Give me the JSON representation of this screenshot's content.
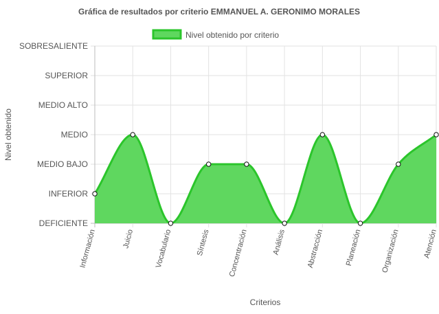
{
  "chart_data": {
    "type": "area",
    "title": "Gráfica de resultados por criterio EMMANUEL A. GERONIMO MORALES",
    "xlabel": "Criterios",
    "ylabel": "Nivel obtenido",
    "categories": [
      "Información",
      "Juicio",
      "Vocabulario",
      "Síntesis",
      "Concentración",
      "Análisis",
      "Abstracción",
      "Planeación",
      "Organización",
      "Atención"
    ],
    "y_levels": [
      "DEFICIENTE",
      "INFERIOR",
      "MEDIO BAJO",
      "MEDIO",
      "MEDIO ALTO",
      "SUPERIOR",
      "SOBRESALIENTE"
    ],
    "ylim": [
      0,
      6
    ],
    "grid": true,
    "legend_position": "top",
    "series": [
      {
        "name": "Nivel obtenido por criterio",
        "values": [
          1,
          3,
          0,
          2,
          2,
          0,
          3,
          0,
          2,
          3
        ],
        "line_color": "#2bc52b",
        "fill_color": "#5fd75f",
        "point_fill": "#ffffff",
        "point_stroke": "#111111"
      }
    ],
    "colors": {
      "grid": "#e2e2e2",
      "axis": "#bbbbbb",
      "text": "#555555"
    }
  }
}
